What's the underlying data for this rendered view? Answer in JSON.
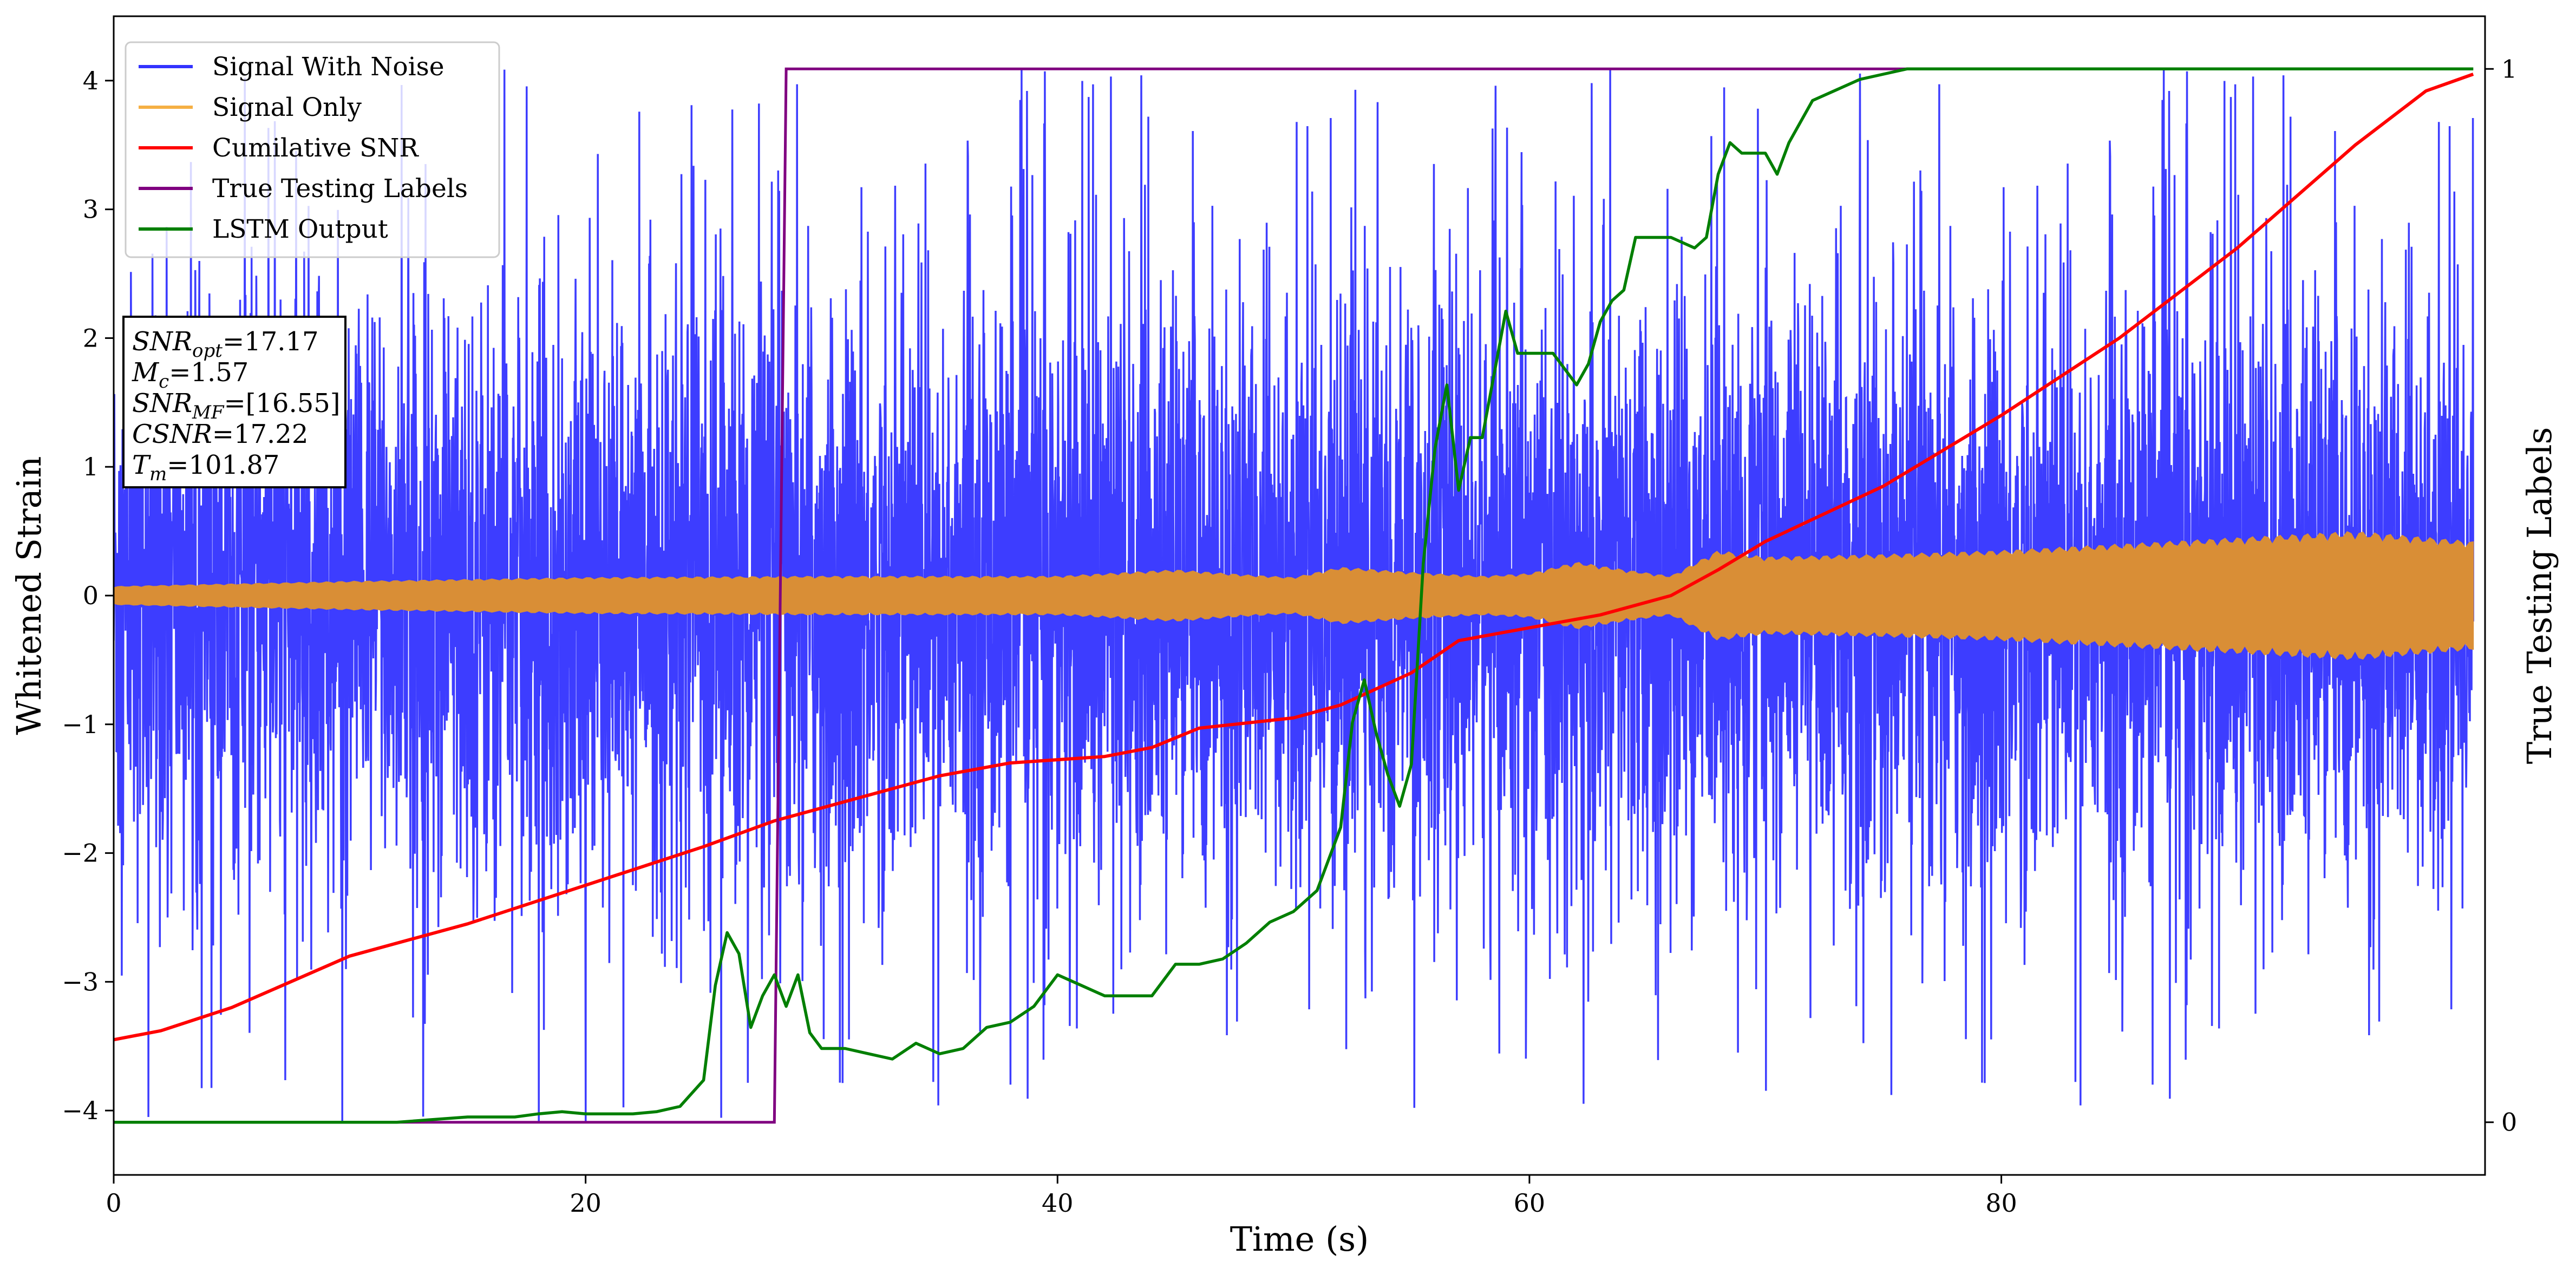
{
  "chart_data": {
    "type": "line",
    "xlabel": "Time (s)",
    "ylabel": "Whitened Strain",
    "ylabel_right": "True Testing Labels",
    "xlim": [
      0,
      100.5
    ],
    "ylim": [
      -4.5,
      4.5
    ],
    "ylim_right": [
      -0.05,
      1.05
    ],
    "x_ticks": [
      0,
      20,
      40,
      60,
      80
    ],
    "y_ticks": [
      -4,
      -3,
      -2,
      -1,
      0,
      1,
      2,
      3,
      4
    ],
    "y_ticks_right": [
      0,
      1
    ],
    "grid": false,
    "legend_position": "top-left",
    "colors": {
      "signal_with_noise": "#3333ff",
      "signal_only": "#d98e36",
      "cumulative_snr": "#ff0000",
      "true_labels": "#800080",
      "lstm_output": "#007f00"
    },
    "series": [
      {
        "name": "Signal With Noise",
        "axis": "left",
        "envelope": {
          "typical_amplitude": 1.5,
          "peak_amplitude": 4.1
        }
      },
      {
        "name": "Signal Only",
        "axis": "left",
        "envelope": {
          "x": [
            0,
            10,
            20,
            30,
            40,
            45,
            48,
            50,
            52,
            55,
            58,
            60,
            62,
            64,
            66,
            68,
            70,
            75,
            80,
            85,
            90,
            95,
            100
          ],
          "amp": [
            0.07,
            0.11,
            0.14,
            0.15,
            0.15,
            0.2,
            0.16,
            0.14,
            0.22,
            0.18,
            0.15,
            0.17,
            0.26,
            0.2,
            0.15,
            0.35,
            0.3,
            0.32,
            0.35,
            0.4,
            0.45,
            0.5,
            0.42
          ]
        }
      },
      {
        "name": "Cumilative SNR",
        "axis": "left",
        "x": [
          0,
          2,
          5,
          10,
          15,
          20,
          25,
          28,
          30,
          35,
          38,
          42,
          44,
          46,
          50,
          52,
          55,
          57,
          60,
          63,
          66,
          68,
          70,
          75,
          80,
          85,
          90,
          95,
          98,
          100
        ],
        "y": [
          -3.45,
          -3.38,
          -3.2,
          -2.8,
          -2.55,
          -2.25,
          -1.95,
          -1.75,
          -1.65,
          -1.4,
          -1.3,
          -1.25,
          -1.18,
          -1.03,
          -0.95,
          -0.85,
          -0.6,
          -0.35,
          -0.25,
          -0.15,
          0,
          0.2,
          0.42,
          0.85,
          1.4,
          2.0,
          2.7,
          3.5,
          3.92,
          4.05
        ]
      },
      {
        "name": "True Testing Labels",
        "axis": "right",
        "x": [
          0,
          28.0,
          28.5,
          100
        ],
        "y": [
          0,
          0,
          1,
          1
        ]
      },
      {
        "name": "LSTM Output",
        "axis": "right",
        "x": [
          0,
          12,
          15,
          17,
          18,
          19,
          20,
          22,
          23,
          24,
          25,
          25.5,
          26,
          26.5,
          27,
          27.5,
          28,
          28.5,
          29,
          29.5,
          30,
          31,
          32,
          33,
          34,
          35,
          36,
          37,
          38,
          39,
          40,
          41,
          42,
          43,
          44,
          45,
          46,
          47,
          48,
          49,
          50,
          51,
          52,
          52.5,
          53,
          53.5,
          54,
          54.5,
          55,
          55.5,
          56,
          56.5,
          57,
          57.5,
          58,
          58.5,
          59,
          59.5,
          60,
          61,
          62,
          62.5,
          63,
          63.5,
          64,
          64.5,
          65,
          66,
          67,
          67.5,
          68,
          68.5,
          69,
          70,
          70.5,
          71,
          71.5,
          72,
          73,
          74,
          75,
          76,
          77,
          100
        ],
        "y": [
          0,
          0,
          0.005,
          0.005,
          0.008,
          0.01,
          0.008,
          0.008,
          0.01,
          0.015,
          0.04,
          0.13,
          0.18,
          0.16,
          0.09,
          0.12,
          0.14,
          0.11,
          0.14,
          0.085,
          0.07,
          0.07,
          0.065,
          0.06,
          0.075,
          0.065,
          0.07,
          0.09,
          0.095,
          0.11,
          0.14,
          0.13,
          0.12,
          0.12,
          0.12,
          0.15,
          0.15,
          0.155,
          0.17,
          0.19,
          0.2,
          0.22,
          0.28,
          0.38,
          0.42,
          0.37,
          0.33,
          0.3,
          0.34,
          0.53,
          0.64,
          0.7,
          0.6,
          0.65,
          0.65,
          0.71,
          0.77,
          0.73,
          0.73,
          0.73,
          0.7,
          0.72,
          0.76,
          0.78,
          0.79,
          0.84,
          0.84,
          0.84,
          0.83,
          0.84,
          0.9,
          0.93,
          0.92,
          0.92,
          0.9,
          0.93,
          0.95,
          0.97,
          0.98,
          0.99,
          0.995,
          1.0,
          1.0,
          1.0
        ]
      }
    ]
  },
  "legend": {
    "items": [
      {
        "label": "Signal With Noise",
        "color": "#3333ff"
      },
      {
        "label": "Signal Only",
        "color": "#f5b044"
      },
      {
        "label": "Cumilative SNR",
        "color": "#ff0000"
      },
      {
        "label": "True Testing Labels",
        "color": "#800080"
      },
      {
        "label": "LSTM Output",
        "color": "#007f00"
      }
    ]
  },
  "info_box": {
    "lines": [
      {
        "base": "SNR",
        "sub": "opt",
        "value": "=17.17"
      },
      {
        "base": "M",
        "sub": "c",
        "value": "=1.57"
      },
      {
        "base": "SNR",
        "sub": "MF",
        "value": "=[16.55]"
      },
      {
        "base": "CSNR",
        "sub": "",
        "value": "=17.22"
      },
      {
        "base": "T",
        "sub": "m",
        "value": "=101.87"
      }
    ]
  }
}
